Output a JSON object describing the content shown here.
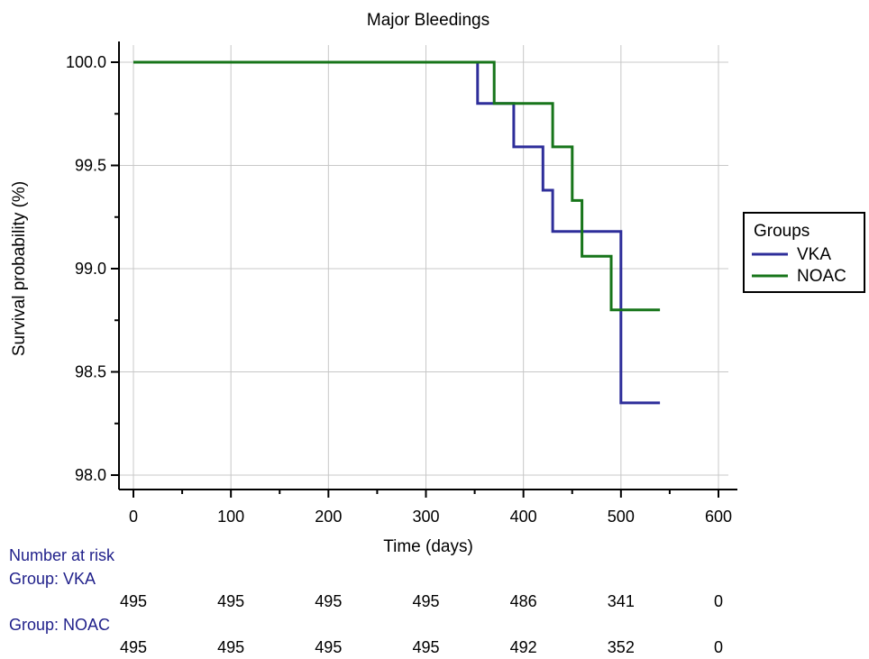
{
  "chart_data": {
    "type": "line",
    "step": true,
    "title": "Major Bleedings",
    "xlabel": "Time (days)",
    "ylabel": "Survival probability (%)",
    "xlim": [
      0,
      600
    ],
    "ylim": [
      98.0,
      100.0
    ],
    "x_ticks": [
      0,
      100,
      200,
      300,
      400,
      500,
      600
    ],
    "y_ticks": [
      98.0,
      98.5,
      99.0,
      99.5,
      100.0
    ],
    "x_tick_labels": [
      "0",
      "100",
      "200",
      "300",
      "400",
      "500",
      "600"
    ],
    "y_tick_labels": [
      "98.0",
      "98.5",
      "99.0",
      "99.5",
      "100.0"
    ],
    "grid": true,
    "legend": {
      "title": "Groups",
      "placement": "right"
    },
    "series": [
      {
        "name": "VKA",
        "color": "#2e2e9a",
        "x": [
          0,
          353,
          353,
          390,
          390,
          420,
          420,
          430,
          430,
          500,
          500,
          540
        ],
        "y": [
          100.0,
          100.0,
          99.8,
          99.8,
          99.59,
          99.59,
          99.38,
          99.38,
          99.18,
          99.18,
          98.35,
          98.35
        ]
      },
      {
        "name": "NOAC",
        "color": "#17751a",
        "x": [
          0,
          370,
          370,
          430,
          430,
          450,
          450,
          460,
          460,
          490,
          490,
          540
        ],
        "y": [
          100.0,
          100.0,
          99.8,
          99.8,
          99.59,
          99.59,
          99.33,
          99.33,
          99.06,
          99.06,
          98.8,
          98.8
        ]
      }
    ]
  },
  "risk_table": {
    "title": "Number at risk",
    "groups": [
      {
        "label": "Group: VKA",
        "values": [
          "495",
          "495",
          "495",
          "495",
          "486",
          "341",
          "0"
        ]
      },
      {
        "label": "Group: NOAC",
        "values": [
          "495",
          "495",
          "495",
          "495",
          "492",
          "352",
          "0"
        ]
      }
    ]
  }
}
